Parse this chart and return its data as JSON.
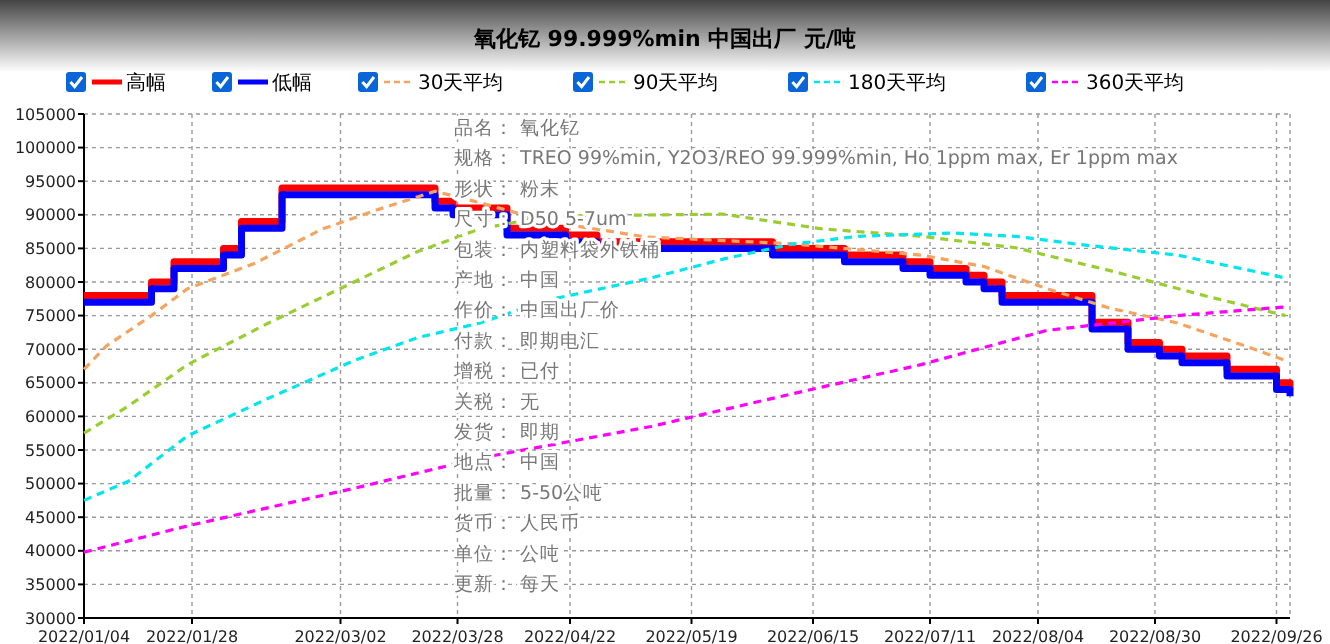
{
  "chart_data": {
    "type": "line",
    "title": "氧化钇 99.999%min 中国出厂 元/吨",
    "xlim": [
      "2022-01-04",
      "2022-09-29"
    ],
    "xticks": [
      {
        "value": "2022-01-04",
        "label": "2022/01/04"
      },
      {
        "value": "2022-01-28",
        "label": "2022/01/28"
      },
      {
        "value": "2022-03-02",
        "label": "2022/03/02"
      },
      {
        "value": "2022-03-28",
        "label": "2022/03/28"
      },
      {
        "value": "2022-04-22",
        "label": "2022/04/22"
      },
      {
        "value": "2022-05-19",
        "label": "2022/05/19"
      },
      {
        "value": "2022-06-15",
        "label": "2022/06/15"
      },
      {
        "value": "2022-07-11",
        "label": "2022/07/11"
      },
      {
        "value": "2022-08-04",
        "label": "2022/08/04"
      },
      {
        "value": "2022-08-30",
        "label": "2022/08/30"
      },
      {
        "value": "2022-09-26",
        "label": "2022/09/26"
      }
    ],
    "ylim": [
      30000,
      105000
    ],
    "yticks": [
      30000,
      35000,
      40000,
      45000,
      50000,
      55000,
      60000,
      65000,
      70000,
      75000,
      80000,
      85000,
      90000,
      95000,
      100000,
      105000
    ],
    "grid": true,
    "legend": "top",
    "marker": "none",
    "series": [
      {
        "name": "高幅",
        "type": "step",
        "color": "#ff0000",
        "line_style": "solid",
        "x": [
          "2022-01-04",
          "2022-01-19",
          "2022-01-24",
          "2022-02-04",
          "2022-02-08",
          "2022-02-17",
          "2022-03-23",
          "2022-03-27",
          "2022-04-08",
          "2022-04-21",
          "2022-04-28",
          "2022-06-06",
          "2022-06-22",
          "2022-07-05",
          "2022-07-11",
          "2022-07-19",
          "2022-07-23",
          "2022-07-27",
          "2022-08-16",
          "2022-08-24",
          "2022-08-31",
          "2022-09-05",
          "2022-09-15",
          "2022-09-26",
          "2022-09-29"
        ],
        "values": [
          78000,
          80000,
          83000,
          85000,
          89000,
          94000,
          92000,
          91000,
          88000,
          87000,
          86000,
          85000,
          84000,
          83000,
          82000,
          81000,
          80000,
          78000,
          74000,
          71000,
          70000,
          69000,
          67000,
          65000,
          64000
        ]
      },
      {
        "name": "低幅",
        "type": "step",
        "color": "#0000ff",
        "line_style": "solid",
        "x": [
          "2022-01-04",
          "2022-01-19",
          "2022-01-24",
          "2022-02-04",
          "2022-02-08",
          "2022-02-17",
          "2022-03-23",
          "2022-03-27",
          "2022-04-08",
          "2022-04-21",
          "2022-04-28",
          "2022-06-06",
          "2022-06-22",
          "2022-07-05",
          "2022-07-11",
          "2022-07-19",
          "2022-07-23",
          "2022-07-27",
          "2022-08-16",
          "2022-08-24",
          "2022-08-31",
          "2022-09-05",
          "2022-09-15",
          "2022-09-26",
          "2022-09-29"
        ],
        "values": [
          77000,
          79000,
          82000,
          84000,
          88000,
          93000,
          91000,
          90000,
          87000,
          86000,
          85000,
          84000,
          83000,
          82000,
          81000,
          80000,
          79000,
          77000,
          73000,
          70000,
          69000,
          68000,
          66000,
          64000,
          63000
        ]
      },
      {
        "name": "30天平均",
        "color": "#f4a460",
        "line_style": "dashed",
        "x": [
          "2022-01-04",
          "2022-01-09",
          "2022-01-19",
          "2022-01-27",
          "2022-02-11",
          "2022-02-26",
          "2022-03-10",
          "2022-03-23",
          "2022-04-02",
          "2022-04-17",
          "2022-05-09",
          "2022-06-10",
          "2022-07-09",
          "2022-07-23",
          "2022-08-06",
          "2022-08-20",
          "2022-09-04",
          "2022-09-19",
          "2022-09-28"
        ],
        "values": [
          67000,
          70500,
          75000,
          79000,
          82800,
          87900,
          90700,
          93500,
          91800,
          89000,
          86700,
          85700,
          84000,
          82300,
          79000,
          76100,
          73900,
          70500,
          68300
        ]
      },
      {
        "name": "90天平均",
        "color": "#9acd32",
        "line_style": "dashed",
        "x": [
          "2022-01-04",
          "2022-01-14",
          "2022-01-27",
          "2022-02-14",
          "2022-03-05",
          "2022-03-19",
          "2022-04-02",
          "2022-04-17",
          "2022-05-26",
          "2022-06-17",
          "2022-07-09",
          "2022-07-30",
          "2022-08-20",
          "2022-09-11",
          "2022-09-28"
        ],
        "values": [
          57500,
          61600,
          67700,
          73900,
          80000,
          84500,
          87900,
          89800,
          90100,
          87900,
          86800,
          85100,
          81700,
          77800,
          75000
        ]
      },
      {
        "name": "180天平均",
        "color": "#00e5ee",
        "line_style": "dashed",
        "x": [
          "2022-01-04",
          "2022-01-14",
          "2022-01-27",
          "2022-02-14",
          "2022-03-05",
          "2022-03-19",
          "2022-04-02",
          "2022-04-17",
          "2022-05-10",
          "2022-05-26",
          "2022-06-10",
          "2022-06-25",
          "2022-07-16",
          "2022-07-30",
          "2022-08-13",
          "2022-09-04",
          "2022-09-28"
        ],
        "values": [
          47500,
          50400,
          57100,
          62700,
          68300,
          71700,
          73900,
          77300,
          80600,
          83400,
          85600,
          86800,
          87300,
          86800,
          85600,
          84000,
          80600
        ]
      },
      {
        "name": "360天平均",
        "color": "#ff00ff",
        "line_style": "dashed",
        "x": [
          "2022-01-04",
          "2022-01-27",
          "2022-03-05",
          "2022-04-02",
          "2022-05-10",
          "2022-06-10",
          "2022-07-09",
          "2022-08-06",
          "2022-09-04",
          "2022-09-28"
        ],
        "values": [
          39800,
          43700,
          49300,
          53800,
          58500,
          63300,
          67700,
          72800,
          75000,
          76300
        ]
      }
    ],
    "annotations": [
      "品名： 氧化钇",
      "规格： TREO 99%min, Y2O3/REO 99.999%min, Ho 1ppm max, Er 1ppm max",
      "形状： 粉末",
      "尺寸： D50 5-7um",
      "包装： 内塑料袋外铁桶",
      "产地： 中国",
      "作价： 中国出厂价",
      "付款： 即期电汇",
      "增税： 已付",
      "关税： 无",
      "发货： 即期",
      "地点： 中国",
      "批量： 5-50公吨",
      "货币： 人民币",
      "单位： 公吨",
      "更新： 每天"
    ]
  }
}
